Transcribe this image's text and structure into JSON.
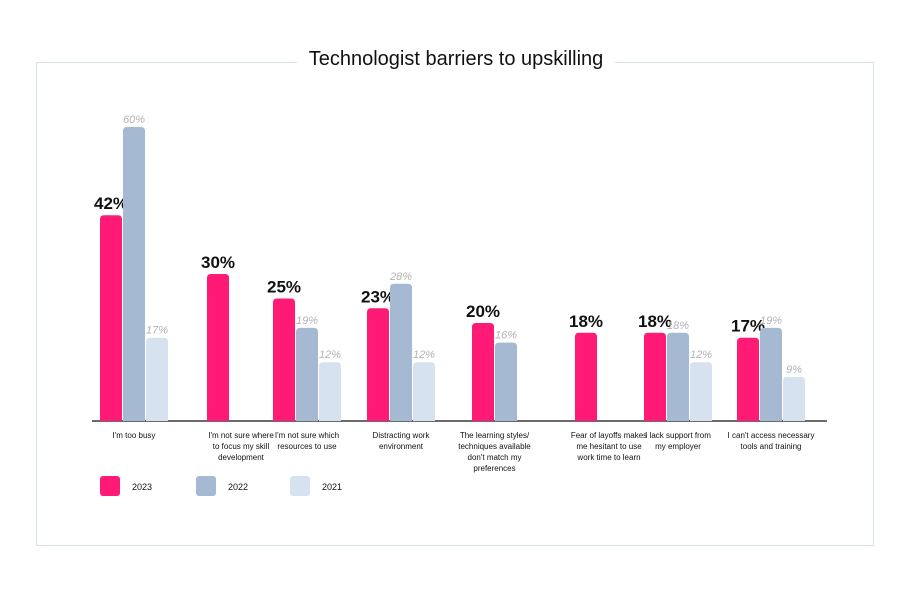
{
  "chart_data": {
    "type": "bar",
    "title": "Technologist barriers to upskilling",
    "categories": [
      [
        "I'm too busy"
      ],
      [
        "I'm not sure where",
        "to focus my skill",
        "development"
      ],
      [
        "I'm not sure which",
        "resources to use"
      ],
      [
        "Distracting work",
        "environment"
      ],
      [
        "The learning styles/",
        "techniques available",
        "don't match my",
        "preferences"
      ],
      [
        "Fear of layoffs makes",
        "me hesitant to use",
        "work time to learn"
      ],
      [
        "I lack support from",
        "my employer"
      ],
      [
        "I can't access necessary",
        "tools and training"
      ]
    ],
    "series": [
      {
        "name": "2023",
        "color": "#ff1a75",
        "values": [
          42,
          30,
          25,
          23,
          20,
          18,
          18,
          17
        ]
      },
      {
        "name": "2022",
        "color": "#a6b9d3",
        "values": [
          60,
          null,
          19,
          28,
          16,
          null,
          18,
          19
        ]
      },
      {
        "name": "2021",
        "color": "#d6e2f0",
        "values": [
          17,
          null,
          12,
          12,
          null,
          null,
          12,
          9
        ]
      }
    ],
    "value_suffix": "%",
    "ylim": [
      0,
      62
    ],
    "legend_position": "bottom-left",
    "grid": false
  }
}
